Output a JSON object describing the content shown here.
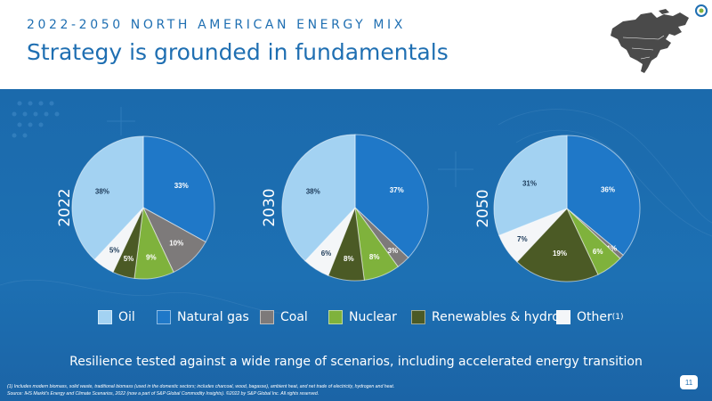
{
  "header": {
    "eyebrow": "2022-2050 NORTH AMERICAN ENERGY MIX",
    "title": "Strategy is grounded in fundamentals"
  },
  "colors": {
    "Oil": "#a3d2f2",
    "Natural gas": "#1f78c8",
    "Coal": "#7d7a7a",
    "Nuclear": "#7fb23c",
    "Renewables & hydro": "#4b5a25",
    "Other": "#f4f6f8",
    "brand": "#1f6fb2"
  },
  "chart_data": [
    {
      "type": "pie",
      "label": "2022",
      "slices": [
        {
          "category": "Natural gas",
          "value": 33,
          "label": "33%"
        },
        {
          "category": "Coal",
          "value": 10,
          "label": "10%"
        },
        {
          "category": "Nuclear",
          "value": 9,
          "label": "9%"
        },
        {
          "category": "Renewables & hydro",
          "value": 5,
          "label": "5%"
        },
        {
          "category": "Other",
          "value": 5,
          "label": "5%"
        },
        {
          "category": "Oil",
          "value": 38,
          "label": "38%"
        }
      ]
    },
    {
      "type": "pie",
      "label": "2030",
      "slices": [
        {
          "category": "Natural gas",
          "value": 37,
          "label": "37%"
        },
        {
          "category": "Coal",
          "value": 3,
          "label": "3%"
        },
        {
          "category": "Nuclear",
          "value": 8,
          "label": "8%"
        },
        {
          "category": "Renewables & hydro",
          "value": 8,
          "label": "8%"
        },
        {
          "category": "Other",
          "value": 6,
          "label": "6%"
        },
        {
          "category": "Oil",
          "value": 38,
          "label": "38%"
        }
      ]
    },
    {
      "type": "pie",
      "label": "2050",
      "slices": [
        {
          "category": "Natural gas",
          "value": 36,
          "label": "36%"
        },
        {
          "category": "Coal",
          "value": 1,
          "label": "1%"
        },
        {
          "category": "Nuclear",
          "value": 6,
          "label": "6%"
        },
        {
          "category": "Renewables & hydro",
          "value": 19,
          "label": "19%"
        },
        {
          "category": "Other",
          "value": 7,
          "label": "7%"
        },
        {
          "category": "Oil",
          "value": 31,
          "label": "31%"
        }
      ]
    }
  ],
  "legend": [
    {
      "name": "Oil",
      "label": "Oil",
      "sup": ""
    },
    {
      "name": "Natural gas",
      "label": "Natural gas",
      "sup": ""
    },
    {
      "name": "Coal",
      "label": "Coal",
      "sup": ""
    },
    {
      "name": "Nuclear",
      "label": "Nuclear",
      "sup": ""
    },
    {
      "name": "Renewables & hydro",
      "label": "Renewables & hydro",
      "sup": ""
    },
    {
      "name": "Other",
      "label": "Other",
      "sup": "(1)"
    }
  ],
  "tagline": "Resilience tested against a wide range of scenarios, including accelerated energy transition",
  "footnotes": [
    "(1) Includes modern biomass, solid waste, traditional biomass (used in the domestic sectors; includes charcoal, wood, bagasse), ambient heat, and net trade of electricity, hydrogen and heat.",
    "Source: IHS Markit's Energy and Climate Scenarios, 2022 (now a part of S&P Global Commodity Insights). ©2022 by S&P Global Inc. All rights reserved."
  ],
  "page_number": "11"
}
